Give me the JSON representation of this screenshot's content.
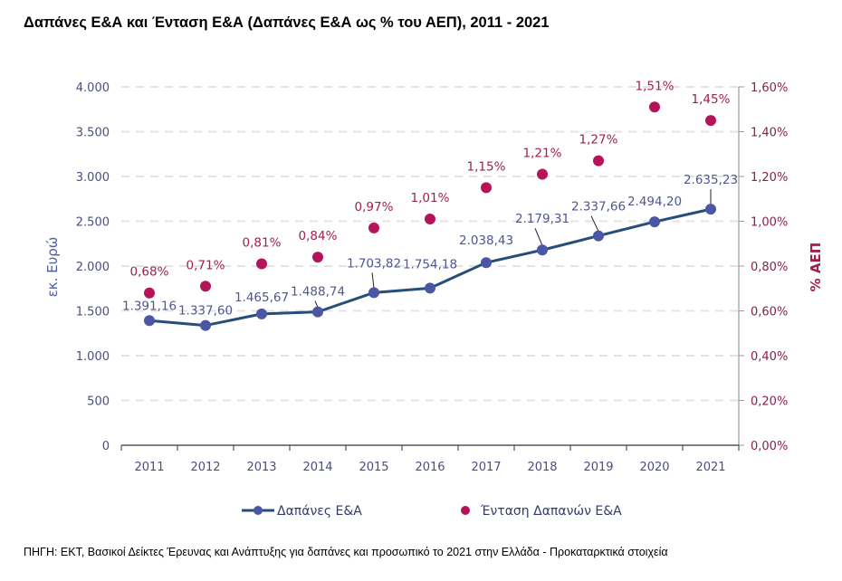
{
  "title": "Δαπάνες Ε&Α και Ένταση Ε&Α (Δαπάνες Ε&Α ως % του ΑΕΠ), 2011 - 2021",
  "source": "ΠΗΓΗ: ΕΚΤ, Βασικοί Δείκτες Έρευνας και Ανάπτυξης για δαπάνες και προσωπικό το 2021 στην Ελλάδα - Προκαταρκτικά στοιχεία",
  "colors": {
    "line": "#264e78",
    "line_marker": "#4b56a6",
    "intensity_marker": "#b5145a",
    "grid": "#e3e3e3",
    "axis": "#555555"
  },
  "chart_data": {
    "type": "line",
    "title": "Δαπάνες Ε&Α και Ένταση Ε&Α (Δαπάνες Ε&Α ως % του ΑΕΠ), 2011 - 2021",
    "categories": [
      "2011",
      "2012",
      "2013",
      "2014",
      "2015",
      "2016",
      "2017",
      "2018",
      "2019",
      "2020",
      "2021"
    ],
    "ylabel": "εκ. Ευρώ",
    "y2label": "% ΑΕΠ",
    "ylim": [
      0,
      4000
    ],
    "y2lim": [
      0,
      1.6
    ],
    "yticks": [
      "0",
      "500",
      "1.000",
      "1.500",
      "2.000",
      "2.500",
      "3.000",
      "3.500",
      "4.000"
    ],
    "y2ticks": [
      "0,00%",
      "0,20%",
      "0,40%",
      "0,60%",
      "0,80%",
      "1,00%",
      "1,20%",
      "1,40%",
      "1,60%"
    ],
    "grid": true,
    "legend_position": "bottom",
    "series": [
      {
        "name": "Δαπάνες Ε&Α",
        "type": "line",
        "axis": "left",
        "values": [
          1391.16,
          1337.6,
          1465.67,
          1488.74,
          1703.82,
          1754.18,
          2038.43,
          2179.31,
          2337.66,
          2494.2,
          2635.23
        ],
        "labels": [
          "1.391,16",
          "1.337,60",
          "1.465,67",
          "1.488,74",
          "1.703,82",
          "1.754,18",
          "2.038,43",
          "2.179,31",
          "2.337,66",
          "2.494,20",
          "2.635,23"
        ]
      },
      {
        "name": "Ένταση Δαπανών Ε&Α",
        "type": "scatter",
        "axis": "right",
        "values": [
          0.68,
          0.71,
          0.81,
          0.84,
          0.97,
          1.01,
          1.15,
          1.21,
          1.27,
          1.51,
          1.45
        ],
        "labels": [
          "0,68%",
          "0,71%",
          "0,81%",
          "0,84%",
          "0,97%",
          "1,01%",
          "1,15%",
          "1,21%",
          "1,27%",
          "1,51%",
          "1,45%"
        ]
      }
    ]
  }
}
